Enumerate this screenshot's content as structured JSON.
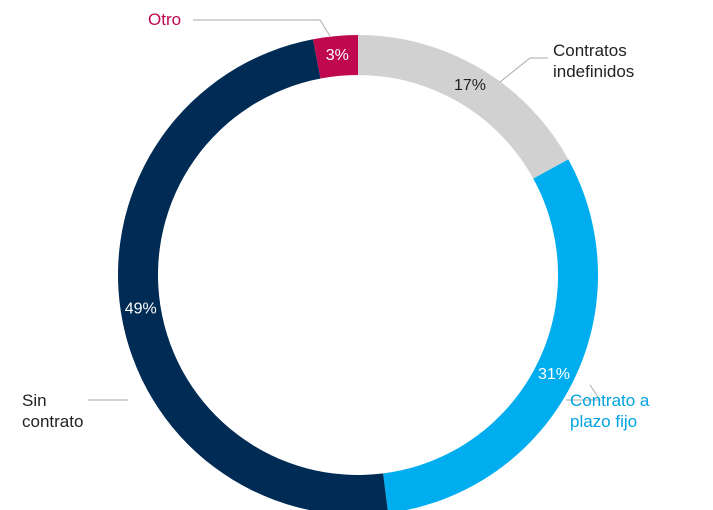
{
  "chart_data": {
    "type": "donut",
    "categories": [
      "Contratos indefinidos",
      "Contrato a plazo fijo",
      "Sin contrato",
      "Otro"
    ],
    "values": [
      17,
      31,
      49,
      3
    ],
    "value_labels": [
      "17%",
      "31%",
      "49%",
      "3%"
    ],
    "colors": [
      "#d1d1d1",
      "#00aeef",
      "#002b54",
      "#c0084f"
    ]
  }
}
